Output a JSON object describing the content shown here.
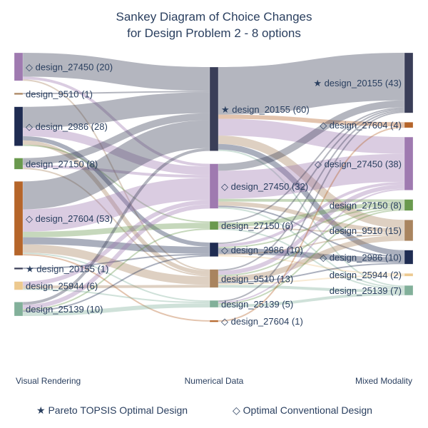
{
  "chart_data": {
    "type": "sankey",
    "title_line1": "Sankey Diagram of Choice Changes",
    "title_line2": "for Design Problem 2 - 8 options",
    "stages": [
      "Visual Rendering",
      "Numerical Data",
      "Mixed Modality"
    ],
    "legend": {
      "pareto": "★ Pareto TOPSIS Optimal Design",
      "conventional": "◇ Optimal Conventional Design"
    },
    "colors": {
      "design_27450": "#9f7ab0",
      "design_9510": "#a9845f",
      "design_2986": "#1f2c52",
      "design_27150": "#6a994e",
      "design_27604": "#b5652a",
      "design_20155": "#3a3e58",
      "design_25944": "#edc98f",
      "design_25139": "#82b09a"
    },
    "nodes": [
      {
        "id": "V_27450",
        "stage": 0,
        "design": "design_27450",
        "label": "◇ design_27450 (20)",
        "value": 20
      },
      {
        "id": "V_9510",
        "stage": 0,
        "design": "design_9510",
        "label": "design_9510 (1)",
        "value": 1
      },
      {
        "id": "V_2986",
        "stage": 0,
        "design": "design_2986",
        "label": "◇ design_2986 (28)",
        "value": 28
      },
      {
        "id": "V_27150",
        "stage": 0,
        "design": "design_27150",
        "label": "design_27150 (8)",
        "value": 8
      },
      {
        "id": "V_27604",
        "stage": 0,
        "design": "design_27604",
        "label": "◇ design_27604 (53)",
        "value": 53
      },
      {
        "id": "V_20155",
        "stage": 0,
        "design": "design_20155",
        "label": "★ design_20155 (1)",
        "value": 1
      },
      {
        "id": "V_25944",
        "stage": 0,
        "design": "design_25944",
        "label": "design_25944 (6)",
        "value": 6
      },
      {
        "id": "V_25139",
        "stage": 0,
        "design": "design_25139",
        "label": "design_25139 (10)",
        "value": 10
      },
      {
        "id": "N_20155",
        "stage": 1,
        "design": "design_20155",
        "label": "★ design_20155 (60)",
        "value": 60
      },
      {
        "id": "N_27450",
        "stage": 1,
        "design": "design_27450",
        "label": "◇ design_27450 (32)",
        "value": 32
      },
      {
        "id": "N_27150",
        "stage": 1,
        "design": "design_27150",
        "label": "design_27150 (6)",
        "value": 6
      },
      {
        "id": "N_2986",
        "stage": 1,
        "design": "design_2986",
        "label": "◇ design_2986 (10)",
        "value": 10
      },
      {
        "id": "N_9510",
        "stage": 1,
        "design": "design_9510",
        "label": "design_9510 (13)",
        "value": 13
      },
      {
        "id": "N_25139",
        "stage": 1,
        "design": "design_25139",
        "label": "design_25139 (5)",
        "value": 5
      },
      {
        "id": "N_27604",
        "stage": 1,
        "design": "design_27604",
        "label": "◇ design_27604 (1)",
        "value": 1
      },
      {
        "id": "M_20155",
        "stage": 2,
        "design": "design_20155",
        "label": "★ design_20155 (43)",
        "value": 43
      },
      {
        "id": "M_27604",
        "stage": 2,
        "design": "design_27604",
        "label": "◇ design_27604 (4)",
        "value": 4
      },
      {
        "id": "M_27450",
        "stage": 2,
        "design": "design_27450",
        "label": "◇ design_27450 (38)",
        "value": 38
      },
      {
        "id": "M_27150",
        "stage": 2,
        "design": "design_27150",
        "label": "design_27150 (8)",
        "value": 8
      },
      {
        "id": "M_9510",
        "stage": 2,
        "design": "design_9510",
        "label": "design_9510 (15)",
        "value": 15
      },
      {
        "id": "M_2986",
        "stage": 2,
        "design": "design_2986",
        "label": "◇ design_2986 (10)",
        "value": 10
      },
      {
        "id": "M_25944",
        "stage": 2,
        "design": "design_25944",
        "label": "design_25944 (2)",
        "value": 2
      },
      {
        "id": "M_25139",
        "stage": 2,
        "design": "design_25139",
        "label": "design_25139 (7)",
        "value": 7
      }
    ],
    "links": [
      [
        "V_27450",
        "N_20155",
        17
      ],
      [
        "V_27450",
        "N_27450",
        2
      ],
      [
        "V_27450",
        "N_9510",
        1
      ],
      [
        "V_9510",
        "N_20155",
        1
      ],
      [
        "V_2986",
        "N_20155",
        15
      ],
      [
        "V_2986",
        "N_27450",
        6
      ],
      [
        "V_2986",
        "N_2986",
        3
      ],
      [
        "V_2986",
        "N_9510",
        3
      ],
      [
        "V_2986",
        "N_27150",
        1
      ],
      [
        "V_27150",
        "N_20155",
        5
      ],
      [
        "V_27150",
        "N_27450",
        2
      ],
      [
        "V_27150",
        "N_9510",
        1
      ],
      [
        "V_27604",
        "N_20155",
        20
      ],
      [
        "V_27604",
        "N_27450",
        16
      ],
      [
        "V_27604",
        "N_27150",
        4
      ],
      [
        "V_27604",
        "N_2986",
        5
      ],
      [
        "V_27604",
        "N_9510",
        6
      ],
      [
        "V_27604",
        "N_25139",
        1
      ],
      [
        "V_27604",
        "N_27604",
        1
      ],
      [
        "V_20155",
        "N_2986",
        1
      ],
      [
        "V_25944",
        "N_27450",
        3
      ],
      [
        "V_25944",
        "N_9510",
        2
      ],
      [
        "V_25944",
        "N_25139",
        1
      ],
      [
        "V_25139",
        "N_20155",
        2
      ],
      [
        "V_25139",
        "N_27450",
        3
      ],
      [
        "V_25139",
        "N_27150",
        1
      ],
      [
        "V_25139",
        "N_2986",
        1
      ],
      [
        "V_25139",
        "N_25139",
        3
      ],
      [
        "N_20155",
        "M_20155",
        34
      ],
      [
        "N_20155",
        "M_27604",
        3
      ],
      [
        "N_20155",
        "M_27450",
        12
      ],
      [
        "N_20155",
        "M_9510",
        6
      ],
      [
        "N_20155",
        "M_2986",
        4
      ],
      [
        "N_20155",
        "M_25139",
        1
      ],
      [
        "N_27450",
        "M_20155",
        5
      ],
      [
        "N_27450",
        "M_27450",
        20
      ],
      [
        "N_27450",
        "M_27150",
        2
      ],
      [
        "N_27450",
        "M_9510",
        3
      ],
      [
        "N_27450",
        "M_2986",
        1
      ],
      [
        "N_27450",
        "M_25139",
        1
      ],
      [
        "N_27150",
        "M_20155",
        1
      ],
      [
        "N_27150",
        "M_27150",
        3
      ],
      [
        "N_27150",
        "M_9510",
        1
      ],
      [
        "N_27150",
        "M_25139",
        1
      ],
      [
        "N_2986",
        "M_20155",
        1
      ],
      [
        "N_2986",
        "M_27450",
        2
      ],
      [
        "N_2986",
        "M_27150",
        1
      ],
      [
        "N_2986",
        "M_2986",
        4
      ],
      [
        "N_2986",
        "M_9510",
        1
      ],
      [
        "N_2986",
        "M_25944",
        1
      ],
      [
        "N_9510",
        "M_20155",
        1
      ],
      [
        "N_9510",
        "M_27450",
        3
      ],
      [
        "N_9510",
        "M_27150",
        1
      ],
      [
        "N_9510",
        "M_9510",
        4
      ],
      [
        "N_9510",
        "M_2986",
        1
      ],
      [
        "N_9510",
        "M_25944",
        1
      ],
      [
        "N_9510",
        "M_25139",
        2
      ],
      [
        "N_25139",
        "M_20155",
        1
      ],
      [
        "N_25139",
        "M_27450",
        1
      ],
      [
        "N_25139",
        "M_27150",
        1
      ],
      [
        "N_25139",
        "M_25139",
        2
      ],
      [
        "N_27604",
        "M_27604",
        1
      ]
    ]
  }
}
